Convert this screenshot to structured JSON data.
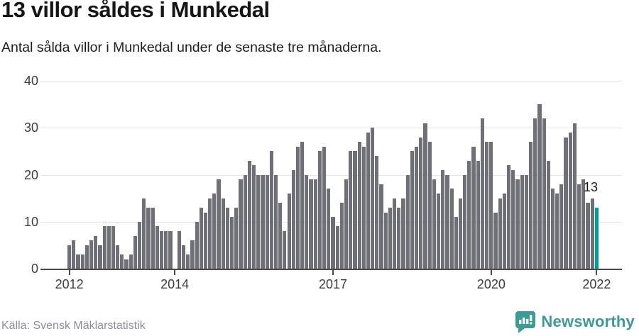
{
  "header": {
    "title": "13 villor såldes i Munkedal",
    "subtitle": "Antal sålda villor i Munkedal under de senaste tre månaderna."
  },
  "footer": {
    "source": "Källa: Svensk Mäklarstatistik",
    "brand": "Newsworthy"
  },
  "colors": {
    "bar": "#6f6f78",
    "highlight": "#00a09a",
    "grid": "#e4e4e4",
    "axis": "#4a4a4a",
    "brand_teal": "#3a9c96"
  },
  "chart_data": {
    "type": "bar",
    "title": "13 villor såldes i Munkedal",
    "subtitle": "Antal sålda villor i Munkedal under de senaste tre månaderna.",
    "x_start_month": "2012-01",
    "x_frequency": "monthly",
    "values": [
      5,
      6,
      3,
      3,
      5,
      6,
      7,
      5,
      9,
      9,
      9,
      5,
      3,
      2,
      3,
      7,
      10,
      15,
      13,
      13,
      9,
      8,
      8,
      8,
      0,
      8,
      5,
      3,
      6,
      10,
      13,
      12,
      15,
      16,
      19,
      15,
      13,
      11,
      13,
      19,
      20,
      23,
      22,
      20,
      20,
      20,
      25,
      20,
      14,
      8,
      16,
      21,
      26,
      27,
      20,
      19,
      19,
      25,
      26,
      17,
      11,
      9,
      14,
      19,
      25,
      25,
      27,
      26,
      29,
      30,
      24,
      18,
      12,
      13,
      15,
      13,
      15,
      20,
      25,
      26,
      28,
      31,
      27,
      19,
      16,
      21,
      20,
      17,
      11,
      15,
      20,
      23,
      26,
      23,
      32,
      27,
      27,
      12,
      15,
      16,
      22,
      21,
      19,
      20,
      20,
      27,
      32,
      35,
      32,
      23,
      17,
      16,
      18,
      28,
      29,
      31,
      18,
      19,
      14,
      15,
      13
    ],
    "highlight_index": 120,
    "annotation": {
      "text": "13"
    },
    "ylim": [
      0,
      40
    ],
    "yticks": [
      0,
      10,
      20,
      30,
      40
    ],
    "xticks": [
      {
        "label": "2012",
        "month_index": 0
      },
      {
        "label": "2014",
        "month_index": 24
      },
      {
        "label": "2017",
        "month_index": 60
      },
      {
        "label": "2020",
        "month_index": 96
      },
      {
        "label": "2022",
        "month_index": 120
      }
    ],
    "grid": true,
    "legend": null
  }
}
